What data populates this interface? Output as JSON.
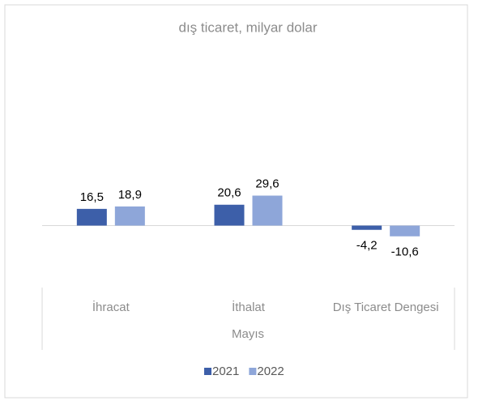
{
  "chart_data": {
    "type": "bar",
    "title": "dış ticaret, milyar dolar",
    "categories": [
      "İhracat",
      "İthalat",
      "Dış Ticaret Dengesi"
    ],
    "x_group_label": "Mayıs",
    "series": [
      {
        "name": "2021",
        "color": "#3d5fa9",
        "values": [
          16.5,
          20.6,
          -4.2
        ],
        "value_labels": [
          "16,5",
          "20,6",
          "-4,2"
        ]
      },
      {
        "name": "2022",
        "color": "#8ea6d9",
        "values": [
          18.9,
          29.6,
          -10.6
        ],
        "value_labels": [
          "18,9",
          "29,6",
          "-10,6"
        ]
      }
    ],
    "ylim": [
      -60,
      170
    ],
    "grid": false,
    "legend": "bottom"
  }
}
